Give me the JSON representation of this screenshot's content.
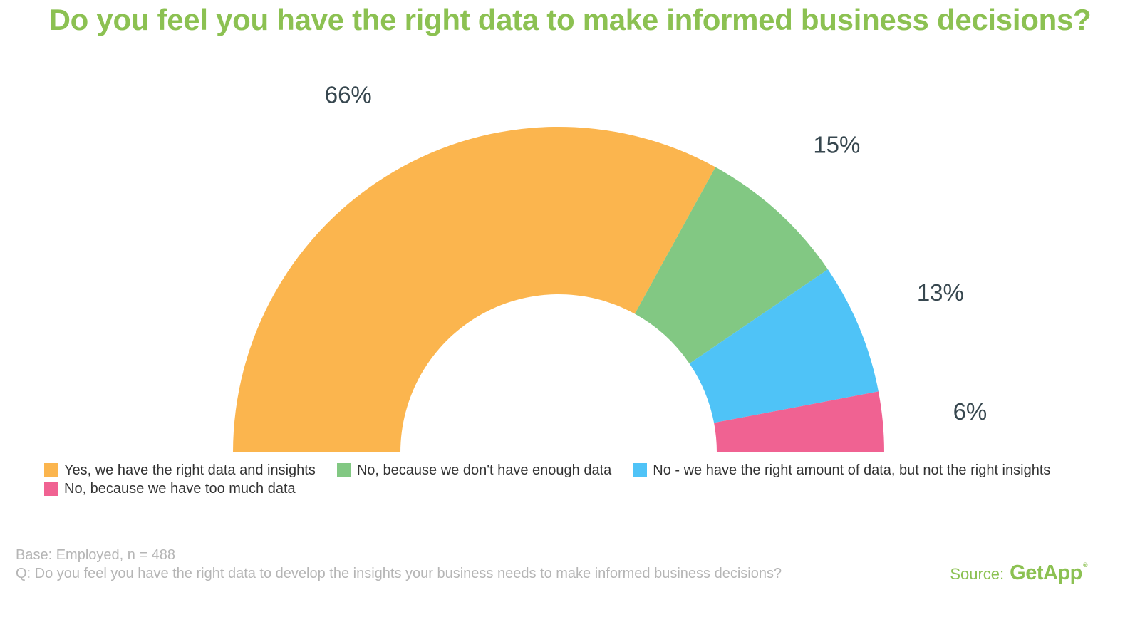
{
  "title": "Do you feel you have the right data to make informed business decisions?",
  "chart_data": {
    "type": "pie",
    "variant": "semi-donut",
    "categories": [
      "Yes, we have the right data and insights",
      "No, because we don't have enough data",
      "No - we have the right amount of data, but not the right insights",
      "No, because we have too much data"
    ],
    "values": [
      66,
      15,
      13,
      6
    ],
    "labels": [
      "66%",
      "15%",
      "13%",
      "6%"
    ],
    "colors": [
      "#fbb54e",
      "#82c883",
      "#4fc3f7",
      "#f06292"
    ],
    "legend_position": "bottom"
  },
  "footer": {
    "base": "Base: Employed, n = 488",
    "question": "Q: Do you feel you have the right data to develop the insights your business needs to make informed business decisions?"
  },
  "source": {
    "label": "Source:",
    "logo_text": "GetApp",
    "logo_mark": "®"
  }
}
